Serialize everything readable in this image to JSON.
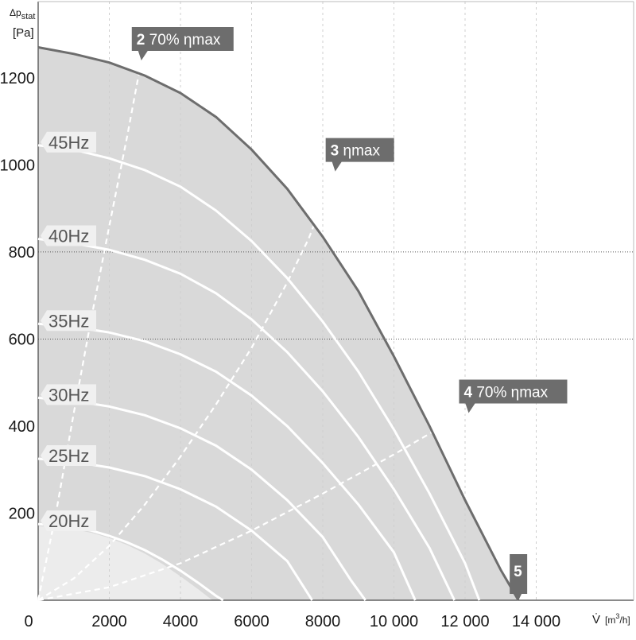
{
  "chart_data": {
    "type": "line",
    "xlabel": {
      "main": "V̇",
      "unit": "[m",
      "sup": "3",
      "unit_end": "/h]"
    },
    "ylabel": {
      "line1_main": "Δp",
      "line1_sub": "stat",
      "line2": "[Pa]"
    },
    "xlim": [
      0,
      15000
    ],
    "ylim": [
      0,
      1400
    ],
    "x_ticks": [
      {
        "value": 0,
        "label": "0"
      },
      {
        "value": 2000,
        "label": "2000"
      },
      {
        "value": 4000,
        "label": "4000"
      },
      {
        "value": 6000,
        "label": "6000"
      },
      {
        "value": 8000,
        "label": "8000"
      },
      {
        "value": 10000,
        "label": "10 000"
      },
      {
        "value": 12000,
        "label": "12 000"
      },
      {
        "value": 14000,
        "label": "14 000"
      }
    ],
    "y_ticks": [
      {
        "value": 200,
        "label": "200"
      },
      {
        "value": 400,
        "label": "400"
      },
      {
        "value": 600,
        "label": "600"
      },
      {
        "value": 800,
        "label": "800"
      },
      {
        "value": 1000,
        "label": "1000"
      },
      {
        "value": 1200,
        "label": "1200"
      }
    ],
    "dotted_gridlines_y": [
      600,
      800
    ],
    "colors": {
      "operating_area": "#d9d9d9",
      "low_area": "#ececec",
      "max_curve": "#6d6d6d",
      "speed_curves": "#ffffff",
      "label_box": "#6d6d6d"
    },
    "max_curve": {
      "name": "",
      "points": [
        [
          0,
          1270
        ],
        [
          1000,
          1255
        ],
        [
          2000,
          1235
        ],
        [
          3000,
          1205
        ],
        [
          4000,
          1165
        ],
        [
          5000,
          1110
        ],
        [
          6000,
          1035
        ],
        [
          7000,
          945
        ],
        [
          8000,
          835
        ],
        [
          9000,
          710
        ],
        [
          10000,
          560
        ],
        [
          11000,
          400
        ],
        [
          12000,
          230
        ],
        [
          13000,
          70
        ],
        [
          13500,
          0
        ]
      ]
    },
    "low_region": {
      "points": [
        [
          0,
          170
        ],
        [
          500,
          168
        ],
        [
          1000,
          163
        ],
        [
          1500,
          155
        ],
        [
          2000,
          143
        ],
        [
          2500,
          127
        ],
        [
          3000,
          107
        ],
        [
          3500,
          83
        ],
        [
          4000,
          55
        ],
        [
          4500,
          25
        ],
        [
          4900,
          0
        ],
        [
          0,
          0
        ]
      ]
    },
    "speed_curves": [
      {
        "name": "45Hz",
        "points": [
          [
            0,
            1045
          ],
          [
            1000,
            1035
          ],
          [
            2000,
            1015
          ],
          [
            3000,
            988
          ],
          [
            4000,
            950
          ],
          [
            5000,
            895
          ],
          [
            6000,
            825
          ],
          [
            7000,
            740
          ],
          [
            8000,
            640
          ],
          [
            9000,
            525
          ],
          [
            10000,
            392
          ],
          [
            11000,
            245
          ],
          [
            12000,
            85
          ],
          [
            12400,
            0
          ]
        ]
      },
      {
        "name": "40Hz",
        "points": [
          [
            0,
            830
          ],
          [
            1000,
            820
          ],
          [
            2000,
            805
          ],
          [
            3000,
            782
          ],
          [
            4000,
            750
          ],
          [
            5000,
            705
          ],
          [
            6000,
            645
          ],
          [
            7000,
            570
          ],
          [
            8000,
            480
          ],
          [
            9000,
            375
          ],
          [
            10000,
            255
          ],
          [
            11000,
            120
          ],
          [
            11700,
            0
          ]
        ]
      },
      {
        "name": "35Hz",
        "points": [
          [
            0,
            635
          ],
          [
            1000,
            628
          ],
          [
            2000,
            615
          ],
          [
            3000,
            595
          ],
          [
            4000,
            565
          ],
          [
            5000,
            525
          ],
          [
            6000,
            470
          ],
          [
            7000,
            400
          ],
          [
            8000,
            315
          ],
          [
            9000,
            220
          ],
          [
            10000,
            110
          ],
          [
            10600,
            0
          ]
        ]
      },
      {
        "name": "30Hz",
        "points": [
          [
            0,
            465
          ],
          [
            1000,
            458
          ],
          [
            2000,
            445
          ],
          [
            3000,
            425
          ],
          [
            4000,
            395
          ],
          [
            5000,
            355
          ],
          [
            6000,
            300
          ],
          [
            7000,
            230
          ],
          [
            8000,
            145
          ],
          [
            8800,
            45
          ],
          [
            9200,
            0
          ]
        ]
      },
      {
        "name": "25Hz",
        "points": [
          [
            0,
            325
          ],
          [
            1000,
            318
          ],
          [
            2000,
            305
          ],
          [
            3000,
            285
          ],
          [
            4000,
            255
          ],
          [
            5000,
            215
          ],
          [
            6000,
            160
          ],
          [
            7000,
            90
          ],
          [
            7700,
            0
          ]
        ]
      },
      {
        "name": "20Hz",
        "points": [
          [
            0,
            175
          ],
          [
            500,
            173
          ],
          [
            1000,
            168
          ],
          [
            1500,
            160
          ],
          [
            2000,
            148
          ],
          [
            2500,
            133
          ],
          [
            3000,
            115
          ],
          [
            3500,
            93
          ],
          [
            4000,
            68
          ],
          [
            4500,
            40
          ],
          [
            5000,
            10
          ],
          [
            5200,
            0
          ]
        ]
      }
    ],
    "efficiency_lines": [
      {
        "name": "2 70% ηmax",
        "points": [
          [
            0,
            0
          ],
          [
            500,
            200
          ],
          [
            1000,
            430
          ],
          [
            1500,
            650
          ],
          [
            2000,
            860
          ],
          [
            2500,
            1065
          ],
          [
            2900,
            1240
          ]
        ]
      },
      {
        "name": "3 ηmax",
        "points": [
          [
            0,
            0
          ],
          [
            1000,
            50
          ],
          [
            2000,
            125
          ],
          [
            3000,
            220
          ],
          [
            4000,
            330
          ],
          [
            5000,
            450
          ],
          [
            6000,
            580
          ],
          [
            7000,
            730
          ],
          [
            7600,
            830
          ],
          [
            8350,
            985
          ]
        ]
      },
      {
        "name": "4 70% ηmax",
        "points": [
          [
            0,
            0
          ],
          [
            2000,
            30
          ],
          [
            4000,
            85
          ],
          [
            6000,
            160
          ],
          [
            8000,
            245
          ],
          [
            10000,
            335
          ],
          [
            12000,
            430
          ]
        ]
      }
    ],
    "operating_points": [
      {
        "number": "2",
        "label": "70% ηmax",
        "x": 2900,
        "y": 1240
      },
      {
        "number": "3",
        "label": "ηmax",
        "x": 8350,
        "y": 985
      },
      {
        "number": "4",
        "label": "70% ηmax",
        "x": 12100,
        "y": 430
      },
      {
        "number": "5",
        "label": "",
        "x": 13500,
        "y": 0
      }
    ]
  }
}
